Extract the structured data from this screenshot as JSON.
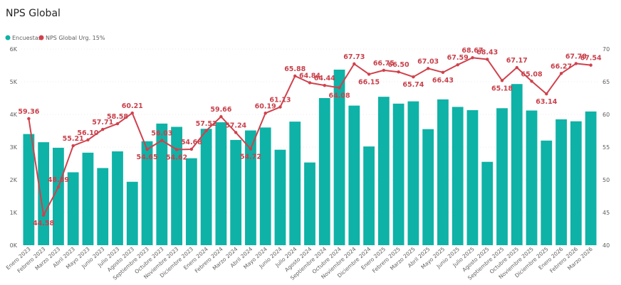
{
  "title": "NPS Global",
  "legend": {
    "bar_series_label": "Encuestas",
    "line_series_label": "NPS Global Urg. 15%"
  },
  "colors": {
    "bar": "#0FB2A6",
    "line": "#D0414C",
    "title": "#252423",
    "axis_text": "#605E5C"
  },
  "chart_data": {
    "type": "bar",
    "categories": [
      "Enero 2023",
      "Febrero 2023",
      "Marzo 2023",
      "Abril 2023",
      "Mayo 2023",
      "Junio 2023",
      "Julio 2023",
      "Agosto 2023",
      "Septiembre 2023",
      "Octubre 2023",
      "Noviembre 2023",
      "Diciembre 2023",
      "Enero 2024",
      "Febrero 2024",
      "Marzo 2024",
      "Abril 2024",
      "Mayo 2024",
      "Junio 2024",
      "Julio 2024",
      "Agosto 2024",
      "Septiembre 2024",
      "Octubre 2024",
      "Noviembre 2024",
      "Diciembre 2024",
      "Enero 2025",
      "Febrero 2025",
      "Marzo 2025",
      "Abril 2025",
      "Mayo 2025",
      "Junio 2025",
      "Julio 2025",
      "Agosto 2025",
      "Septiembre 2025",
      "Octubre 2025",
      "Noviembre 2025",
      "Diciembre 2025",
      "Enero 2026",
      "Febrero 2026",
      "Marzo 2026"
    ],
    "series": [
      {
        "name": "Encuestas",
        "type": "bar",
        "axis": "left",
        "values": [
          3400,
          3150,
          2980,
          2230,
          2830,
          2360,
          2870,
          1940,
          3180,
          3720,
          3620,
          2660,
          3560,
          3760,
          3220,
          3510,
          3600,
          2920,
          3780,
          2530,
          4500,
          5370,
          4270,
          3020,
          4540,
          4330,
          4400,
          3550,
          4460,
          4230,
          4130,
          2550,
          4190,
          4930,
          4120,
          3200,
          3850,
          3790,
          4090
        ]
      },
      {
        "name": "NPS Global Urg. 15%",
        "type": "line",
        "axis": "right",
        "values": [
          59.36,
          44.58,
          48.89,
          55.21,
          56.1,
          57.71,
          58.58,
          60.21,
          54.65,
          56.03,
          54.62,
          54.68,
          57.52,
          59.66,
          57.24,
          54.72,
          60.19,
          61.13,
          65.88,
          64.84,
          64.44,
          64.08,
          67.73,
          66.15,
          66.75,
          66.5,
          65.74,
          67.03,
          66.43,
          67.59,
          68.67,
          68.43,
          65.18,
          67.17,
          65.08,
          63.14,
          66.27,
          67.78,
          67.54
        ],
        "labels": [
          "59.36",
          "44.58",
          "48.89",
          "55.21",
          "56.10",
          "57.71",
          "58.58",
          "60.21",
          "54.65",
          "56.03",
          "54.62",
          "54.68",
          "57.52",
          "59.66",
          "57.24",
          "54.72",
          "60.19",
          "61.13",
          "65.88",
          "64.84",
          "64.44",
          "64.08",
          "67.73",
          "66.15",
          "66.75",
          "66.50",
          "65.74",
          "67.03",
          "66.43",
          "67.59",
          "68.67",
          "68.43",
          "65.18",
          "67.17",
          "65.08",
          "63.14",
          "66.27",
          "67.78",
          "67.54"
        ]
      }
    ],
    "y_left": {
      "ticks": [
        "0K",
        "1K",
        "2K",
        "3K",
        "4K",
        "5K",
        "6K"
      ],
      "range": [
        0,
        6000
      ]
    },
    "y_right": {
      "ticks": [
        "40",
        "45",
        "50",
        "55",
        "60",
        "65",
        "70"
      ],
      "range": [
        40,
        70
      ]
    },
    "grid": true,
    "legend_position": "top-left"
  }
}
